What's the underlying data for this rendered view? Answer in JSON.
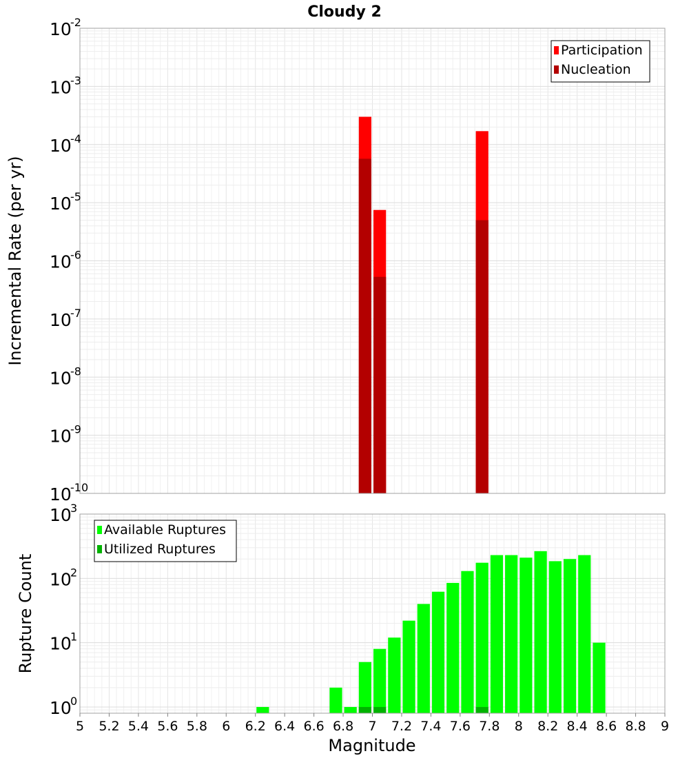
{
  "chart_data": {
    "title": "Cloudy 2",
    "xlabel": "Magnitude",
    "xlim": [
      5,
      9
    ],
    "xticks": [
      "5",
      "5.2",
      "5.4",
      "5.6",
      "5.8",
      "6",
      "6.2",
      "6.4",
      "6.6",
      "6.8",
      "7",
      "7.2",
      "7.4",
      "7.6",
      "7.8",
      "8",
      "8.2",
      "8.4",
      "8.6",
      "8.8",
      "9"
    ],
    "bin_width": 0.1,
    "panels": [
      {
        "type": "bar",
        "ylabel": "Incremental Rate (per yr)",
        "yscale": "log",
        "ylim": [
          1e-10,
          0.01
        ],
        "ytick_exponents": [
          "-2",
          "-3",
          "-4",
          "-5",
          "-6",
          "-7",
          "-8",
          "-9",
          "-10"
        ],
        "legend_position": "top-right",
        "series": [
          {
            "name": "Participation",
            "color": "#ff0000",
            "points": [
              {
                "x": 6.95,
                "y": 0.0003
              },
              {
                "x": 7.05,
                "y": 7.5e-06
              },
              {
                "x": 7.75,
                "y": 0.00017
              }
            ]
          },
          {
            "name": "Nucleation",
            "color": "#b30000",
            "points": [
              {
                "x": 6.95,
                "y": 5.7e-05
              },
              {
                "x": 7.05,
                "y": 5.3e-07
              },
              {
                "x": 7.75,
                "y": 5e-06
              }
            ]
          }
        ]
      },
      {
        "type": "bar",
        "ylabel": "Rupture Count",
        "yscale": "log",
        "ylim": [
          0.8,
          1000
        ],
        "ytick_exponents": [
          "3",
          "2",
          "1",
          "0"
        ],
        "legend_position": "top-left",
        "series": [
          {
            "name": "Available Ruptures",
            "color": "#00ff00",
            "points": [
              {
                "x": 6.25,
                "y": 1
              },
              {
                "x": 6.75,
                "y": 2
              },
              {
                "x": 6.85,
                "y": 1
              },
              {
                "x": 6.95,
                "y": 5
              },
              {
                "x": 7.05,
                "y": 8
              },
              {
                "x": 7.15,
                "y": 12
              },
              {
                "x": 7.25,
                "y": 22
              },
              {
                "x": 7.35,
                "y": 40
              },
              {
                "x": 7.45,
                "y": 62
              },
              {
                "x": 7.55,
                "y": 85
              },
              {
                "x": 7.65,
                "y": 130
              },
              {
                "x": 7.75,
                "y": 175
              },
              {
                "x": 7.85,
                "y": 230
              },
              {
                "x": 7.95,
                "y": 230
              },
              {
                "x": 8.05,
                "y": 210
              },
              {
                "x": 8.15,
                "y": 265
              },
              {
                "x": 8.25,
                "y": 185
              },
              {
                "x": 8.35,
                "y": 200
              },
              {
                "x": 8.45,
                "y": 230
              },
              {
                "x": 8.55,
                "y": 10
              }
            ]
          },
          {
            "name": "Utilized Ruptures",
            "color": "#00b300",
            "points": [
              {
                "x": 6.95,
                "y": 1
              },
              {
                "x": 7.05,
                "y": 1
              },
              {
                "x": 7.75,
                "y": 1
              }
            ]
          }
        ]
      }
    ]
  }
}
